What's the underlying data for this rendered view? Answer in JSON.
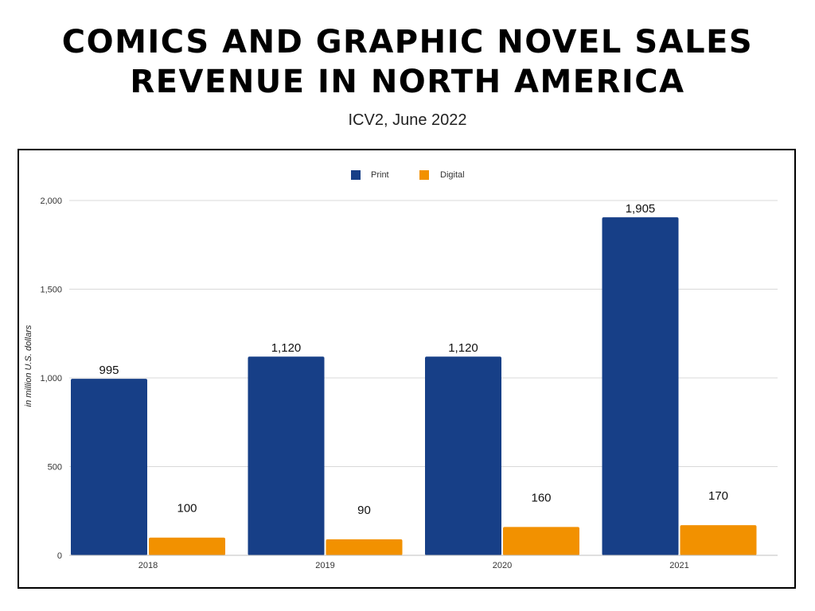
{
  "title": [
    "COMICS AND GRAPHIC NOVEL SALES",
    "REVENUE IN NORTH AMERICA"
  ],
  "subtitle": "ICV2, June 2022",
  "colors": {
    "print": "#173F87",
    "digital": "#F29100",
    "grid": "#d9d9d9",
    "axis": "#bfbfbf"
  },
  "chart_data": {
    "type": "bar",
    "categories": [
      "2018",
      "2019",
      "2020",
      "2021"
    ],
    "series": [
      {
        "name": "Print",
        "values": [
          995,
          1120,
          1120,
          1905
        ],
        "labels": [
          "995",
          "1,120",
          "1,120",
          "1,905"
        ]
      },
      {
        "name": "Digital",
        "values": [
          100,
          90,
          160,
          170
        ],
        "labels": [
          "100",
          "90",
          "160",
          "170"
        ]
      }
    ],
    "ylabel": "in million U.S. dollars",
    "ylim": [
      0,
      2000
    ],
    "yticks": [
      0,
      500,
      1000,
      1500,
      2000
    ],
    "ytick_labels": [
      "0",
      "500",
      "1,000",
      "1,500",
      "2,000"
    ],
    "grid": true,
    "legend": "top-center"
  }
}
